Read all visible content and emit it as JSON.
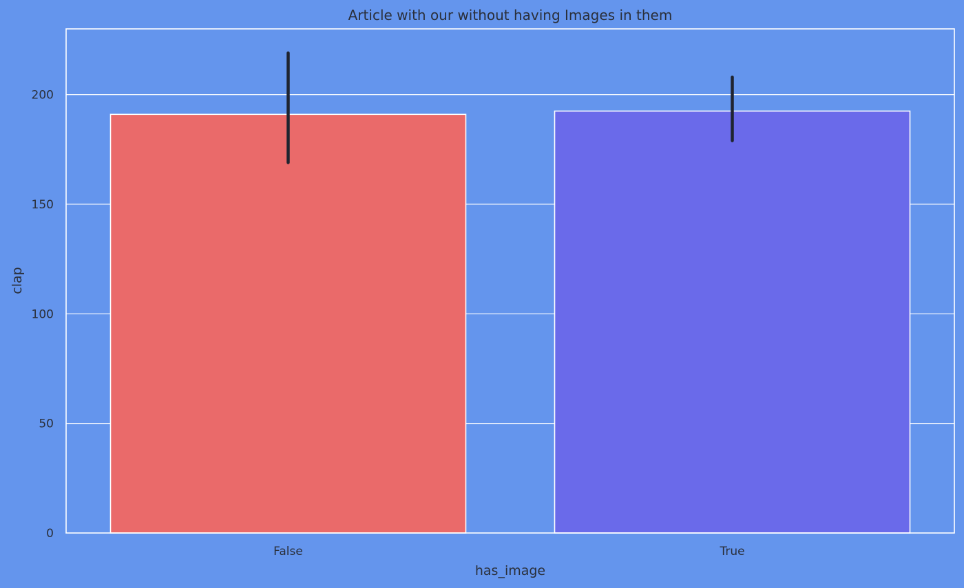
{
  "chart_data": {
    "type": "bar",
    "title": "Article with our without having Images in them",
    "xlabel": "has_image",
    "ylabel": "clap",
    "categories": [
      "False",
      "True"
    ],
    "values": [
      191,
      192.5
    ],
    "error_bars": [
      {
        "low": 169,
        "high": 219
      },
      {
        "low": 179,
        "high": 208
      }
    ],
    "ylim": [
      0,
      230
    ],
    "yticks": [
      0,
      50,
      100,
      150,
      200
    ],
    "grid": true,
    "background_color": "#6495ED",
    "bar_colors": [
      "#EA6A6A",
      "#6A6AEA"
    ],
    "error_bar_color": "#1f2430",
    "grid_color": "#ffffff"
  }
}
